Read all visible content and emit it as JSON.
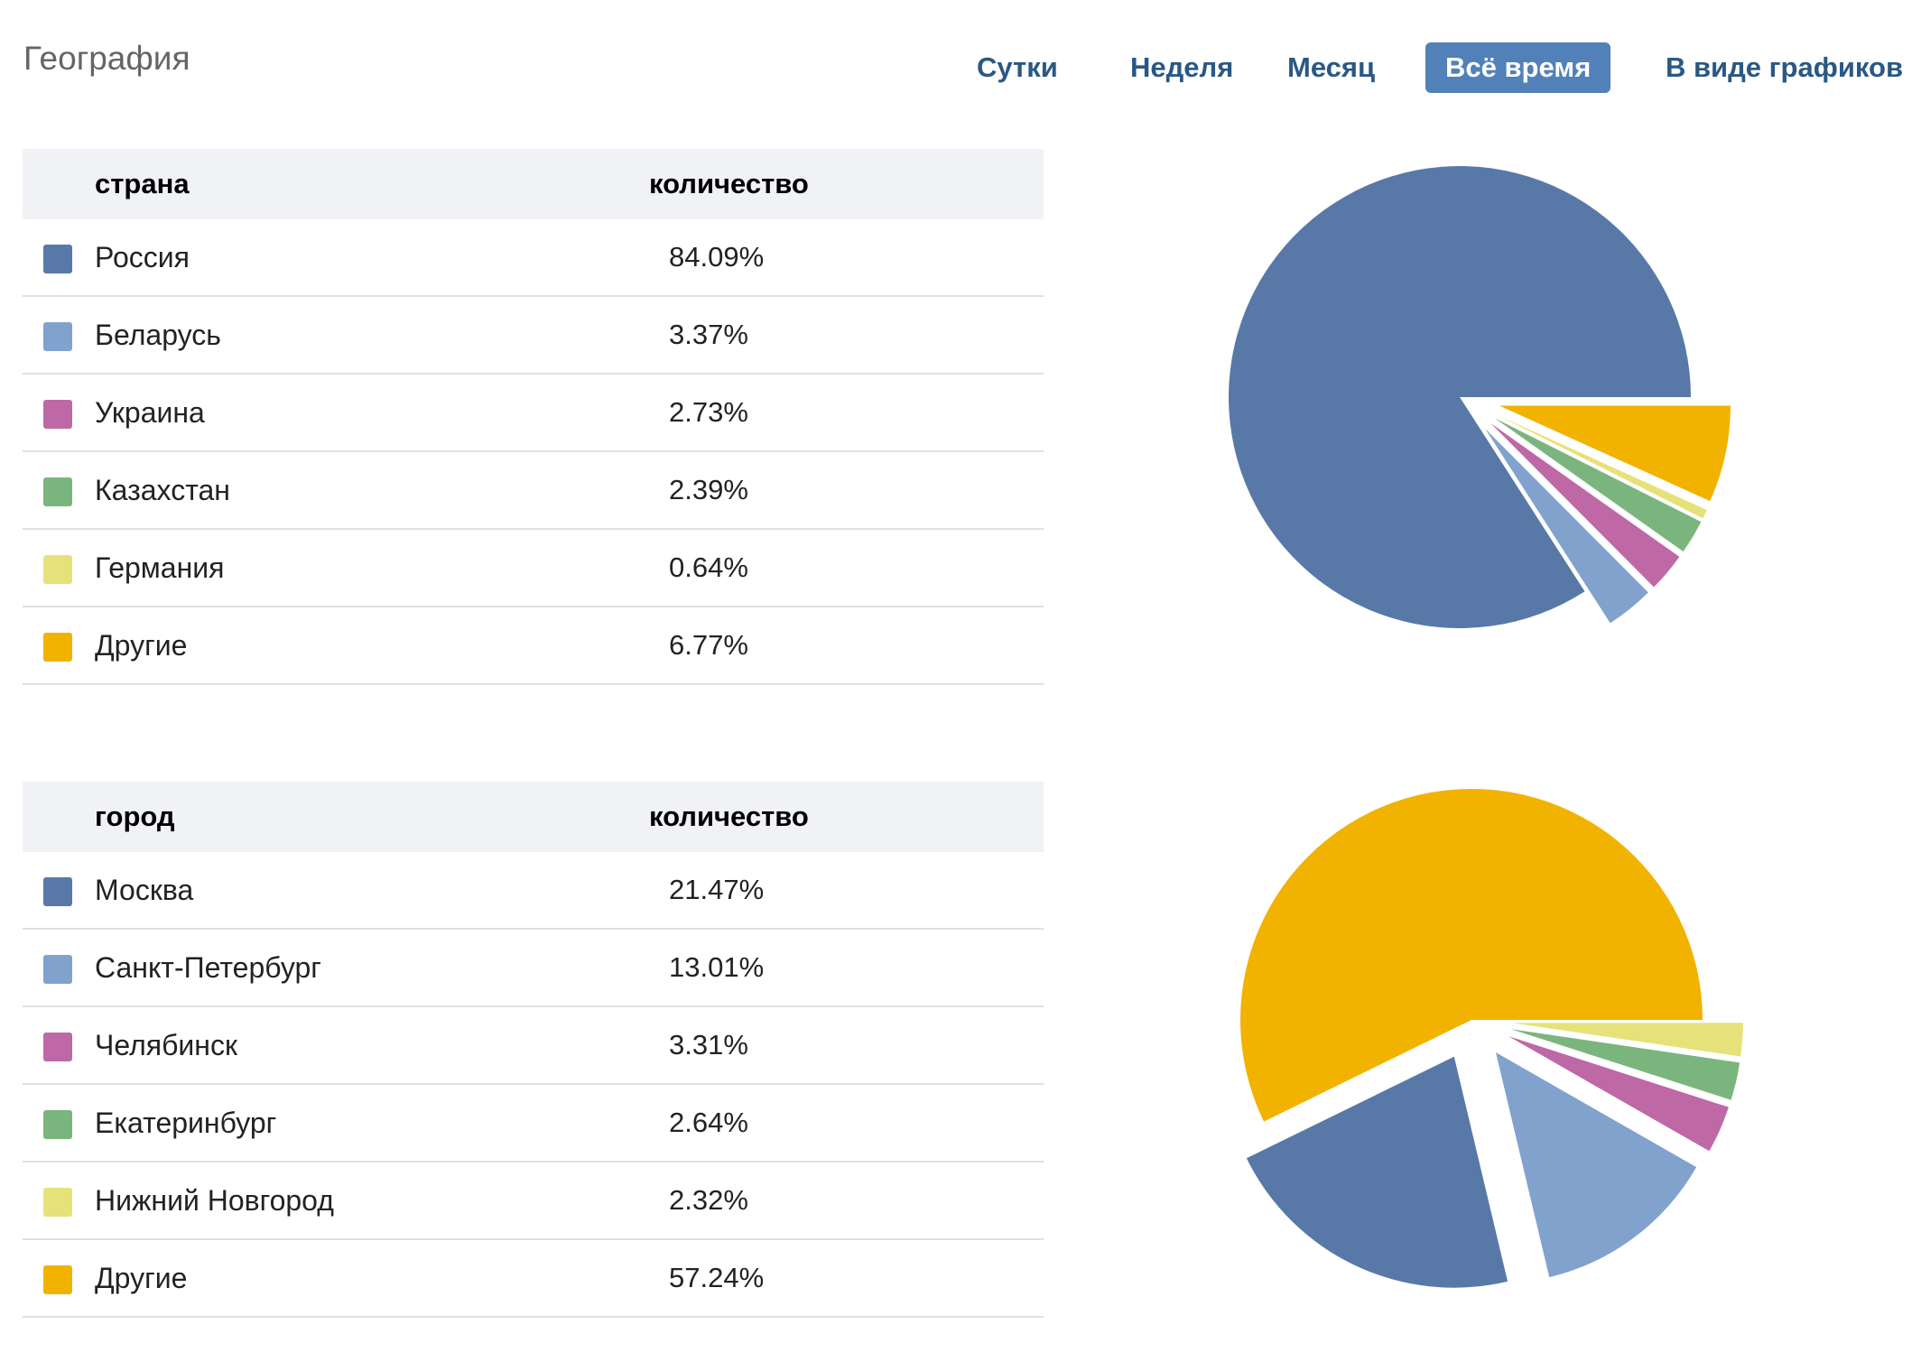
{
  "header": {
    "title": "География"
  },
  "periods": [
    {
      "label": "Сутки",
      "active": false
    },
    {
      "label": "Неделя",
      "active": false
    },
    {
      "label": "Месяц",
      "active": false
    },
    {
      "label": "Всё время",
      "active": true
    },
    {
      "label": "В виде графиков",
      "active": false
    }
  ],
  "countries": {
    "col_name": "страна",
    "col_value": "количество",
    "rows": [
      {
        "label": "Россия",
        "value": "84.09%",
        "color": "#5879a7"
      },
      {
        "label": "Беларусь",
        "value": "3.37%",
        "color": "#81a2cd"
      },
      {
        "label": "Украина",
        "value": "2.73%",
        "color": "#be68a6"
      },
      {
        "label": "Казахстан",
        "value": "2.39%",
        "color": "#7bb57e"
      },
      {
        "label": "Германия",
        "value": "0.64%",
        "color": "#e6e27a"
      },
      {
        "label": "Другие",
        "value": "6.77%",
        "color": "#f2b200"
      }
    ]
  },
  "cities": {
    "col_name": "город",
    "col_value": "количество",
    "rows": [
      {
        "label": "Москва",
        "value": "21.47%",
        "color": "#5879a7"
      },
      {
        "label": "Санкт-Петербург",
        "value": "13.01%",
        "color": "#81a2cd"
      },
      {
        "label": "Челябинск",
        "value": "3.31%",
        "color": "#be68a6"
      },
      {
        "label": "Екатеринбург",
        "value": "2.64%",
        "color": "#7bb57e"
      },
      {
        "label": "Нижний Новгород",
        "value": "2.32%",
        "color": "#e6e27a"
      },
      {
        "label": "Другие",
        "value": "57.24%",
        "color": "#f2b200"
      }
    ]
  },
  "chart_data": [
    {
      "type": "pie",
      "categories": [
        "Россия",
        "Беларусь",
        "Украина",
        "Казахстан",
        "Германия",
        "Другие"
      ],
      "values": [
        84.09,
        3.37,
        2.73,
        2.39,
        0.64,
        6.77
      ],
      "colors": [
        "#5879a7",
        "#81a2cd",
        "#be68a6",
        "#7bb57e",
        "#e6e27a",
        "#f2b200"
      ],
      "exploded": [
        false,
        true,
        true,
        true,
        true,
        true
      ],
      "legend": "table-left"
    },
    {
      "type": "pie",
      "categories": [
        "Москва",
        "Санкт-Петербург",
        "Челябинск",
        "Екатеринбург",
        "Нижний Новгород",
        "Другие"
      ],
      "values": [
        21.47,
        13.01,
        3.31,
        2.64,
        2.32,
        57.24
      ],
      "colors": [
        "#5879a7",
        "#81a2cd",
        "#be68a6",
        "#7bb57e",
        "#e6e27a",
        "#f2b200"
      ],
      "exploded": [
        true,
        true,
        true,
        true,
        true,
        false
      ],
      "legend": "table-left"
    }
  ]
}
